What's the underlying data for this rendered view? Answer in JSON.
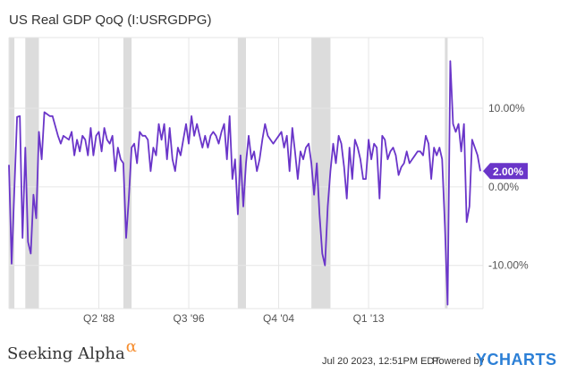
{
  "header": {
    "title": "US Real GDP QoQ (I:USRGDPG)"
  },
  "footer": {
    "date": "Jul 20 2023, 12:51PM EDT.",
    "powered_by": "Powered by",
    "ycharts_logo": "YCHARTS",
    "seeking_alpha_logo": "Seeking Alpha",
    "seeking_alpha_symbol": "α"
  },
  "colors": {
    "line": "#6a35c9",
    "badge": "#6a35c9",
    "recession_band": "#dcdcdc",
    "grid": "#e6e6e6"
  },
  "chart_data": {
    "type": "line",
    "title": "US Real GDP QoQ (I:USRGDPG)",
    "xlabel": "",
    "ylabel": "",
    "x_ticks": [
      "Q2 '88",
      "Q3 '96",
      "Q4 '04",
      "Q1 '13"
    ],
    "y_ticks": [
      "10.00%",
      "0.00%",
      "-10.00%"
    ],
    "ylim": [
      -15.5,
      19
    ],
    "xlim": [
      1980.0,
      2023.5
    ],
    "grid": true,
    "last_value_label": "2.00%",
    "recessions": [
      [
        1980.0,
        1980.5
      ],
      [
        1981.5,
        1982.75
      ],
      [
        1990.5,
        1991.25
      ],
      [
        2001.0,
        2001.75
      ],
      [
        2007.75,
        2009.5
      ],
      [
        2020.0,
        2020.25
      ]
    ],
    "series": [
      {
        "values": [
          [
            1980.0,
            2.8
          ],
          [
            1980.25,
            -9.8
          ],
          [
            1980.5,
            -0.2
          ],
          [
            1980.75,
            8.9
          ],
          [
            1981.0,
            9.0
          ],
          [
            1981.25,
            -6.5
          ],
          [
            1981.5,
            5.0
          ],
          [
            1981.75,
            -7.0
          ],
          [
            1982.0,
            -8.5
          ],
          [
            1982.25,
            -1.0
          ],
          [
            1982.5,
            -4.0
          ],
          [
            1982.75,
            7.0
          ],
          [
            1983.0,
            3.5
          ],
          [
            1983.25,
            9.5
          ],
          [
            1983.75,
            9.0
          ],
          [
            1984.0,
            9.0
          ],
          [
            1984.5,
            6.5
          ],
          [
            1984.75,
            5.5
          ],
          [
            1985.0,
            6.5
          ],
          [
            1985.5,
            6.0
          ],
          [
            1985.75,
            7.0
          ],
          [
            1986.0,
            4.0
          ],
          [
            1986.25,
            6.0
          ],
          [
            1986.5,
            4.5
          ],
          [
            1986.75,
            6.5
          ],
          [
            1987.0,
            6.0
          ],
          [
            1987.25,
            4.0
          ],
          [
            1987.5,
            7.5
          ],
          [
            1987.75,
            4.0
          ],
          [
            1988.0,
            6.5
          ],
          [
            1988.25,
            7.0
          ],
          [
            1988.5,
            4.5
          ],
          [
            1988.75,
            7.5
          ],
          [
            1989.0,
            6.0
          ],
          [
            1989.25,
            5.5
          ],
          [
            1989.5,
            6.5
          ],
          [
            1989.75,
            2.0
          ],
          [
            1990.0,
            5.0
          ],
          [
            1990.25,
            3.5
          ],
          [
            1990.5,
            3.0
          ],
          [
            1990.75,
            -6.5
          ],
          [
            1991.0,
            -1.5
          ],
          [
            1991.25,
            5.0
          ],
          [
            1991.5,
            5.5
          ],
          [
            1991.75,
            3.0
          ],
          [
            1992.0,
            7.0
          ],
          [
            1992.25,
            6.5
          ],
          [
            1992.5,
            6.5
          ],
          [
            1992.75,
            6.0
          ],
          [
            1993.0,
            2.0
          ],
          [
            1993.25,
            5.0
          ],
          [
            1993.5,
            4.0
          ],
          [
            1993.75,
            8.0
          ],
          [
            1994.0,
            6.0
          ],
          [
            1994.25,
            8.0
          ],
          [
            1994.5,
            3.5
          ],
          [
            1994.75,
            7.5
          ],
          [
            1995.0,
            3.5
          ],
          [
            1995.25,
            2.0
          ],
          [
            1995.5,
            5.0
          ],
          [
            1995.75,
            4.0
          ],
          [
            1996.0,
            6.0
          ],
          [
            1996.25,
            8.0
          ],
          [
            1996.5,
            5.5
          ],
          [
            1996.75,
            9.0
          ],
          [
            1997.0,
            6.5
          ],
          [
            1997.25,
            8.0
          ],
          [
            1997.5,
            6.5
          ],
          [
            1997.75,
            5.0
          ],
          [
            1998.0,
            6.5
          ],
          [
            1998.25,
            5.0
          ],
          [
            1998.5,
            6.5
          ],
          [
            1998.75,
            7.0
          ],
          [
            1999.0,
            6.5
          ],
          [
            1999.25,
            5.5
          ],
          [
            1999.5,
            7.0
          ],
          [
            1999.75,
            8.0
          ],
          [
            2000.0,
            3.5
          ],
          [
            2000.25,
            9.0
          ],
          [
            2000.5,
            1.0
          ],
          [
            2000.75,
            3.5
          ],
          [
            2001.0,
            -3.5
          ],
          [
            2001.25,
            4.0
          ],
          [
            2001.5,
            -2.5
          ],
          [
            2001.75,
            3.0
          ],
          [
            2002.0,
            6.5
          ],
          [
            2002.25,
            3.5
          ],
          [
            2002.5,
            4.5
          ],
          [
            2002.75,
            2.0
          ],
          [
            2003.0,
            3.5
          ],
          [
            2003.25,
            6.0
          ],
          [
            2003.5,
            8.0
          ],
          [
            2003.75,
            6.5
          ],
          [
            2004.0,
            6.0
          ],
          [
            2004.25,
            5.5
          ],
          [
            2004.5,
            6.0
          ],
          [
            2004.75,
            6.5
          ],
          [
            2005.0,
            7.0
          ],
          [
            2005.25,
            5.0
          ],
          [
            2005.5,
            6.5
          ],
          [
            2005.75,
            2.0
          ],
          [
            2006.0,
            7.5
          ],
          [
            2006.25,
            4.5
          ],
          [
            2006.5,
            1.0
          ],
          [
            2006.75,
            4.5
          ],
          [
            2007.0,
            3.5
          ],
          [
            2007.25,
            5.0
          ],
          [
            2007.5,
            5.5
          ],
          [
            2007.75,
            3.0
          ],
          [
            2008.0,
            -1.0
          ],
          [
            2008.25,
            3.0
          ],
          [
            2008.5,
            -3.5
          ],
          [
            2008.75,
            -8.5
          ],
          [
            2009.0,
            -10.0
          ],
          [
            2009.25,
            -2.5
          ],
          [
            2009.5,
            2.0
          ],
          [
            2009.75,
            5.5
          ],
          [
            2010.0,
            3.0
          ],
          [
            2010.25,
            6.5
          ],
          [
            2010.5,
            5.5
          ],
          [
            2010.75,
            2.5
          ],
          [
            2011.0,
            -1.5
          ],
          [
            2011.25,
            5.0
          ],
          [
            2011.5,
            1.0
          ],
          [
            2011.75,
            6.0
          ],
          [
            2012.0,
            5.0
          ],
          [
            2012.25,
            3.5
          ],
          [
            2012.5,
            1.0
          ],
          [
            2012.75,
            1.0
          ],
          [
            2013.0,
            6.0
          ],
          [
            2013.25,
            3.5
          ],
          [
            2013.5,
            5.5
          ],
          [
            2013.75,
            5.0
          ],
          [
            2014.0,
            -1.5
          ],
          [
            2014.25,
            6.5
          ],
          [
            2014.5,
            6.0
          ],
          [
            2014.75,
            3.5
          ],
          [
            2015.0,
            4.5
          ],
          [
            2015.25,
            5.0
          ],
          [
            2015.5,
            4.0
          ],
          [
            2015.75,
            1.5
          ],
          [
            2016.0,
            2.5
          ],
          [
            2016.25,
            3.0
          ],
          [
            2016.5,
            4.5
          ],
          [
            2016.75,
            3.0
          ],
          [
            2017.0,
            3.5
          ],
          [
            2017.25,
            4.0
          ],
          [
            2017.5,
            4.5
          ],
          [
            2017.75,
            4.5
          ],
          [
            2018.0,
            4.0
          ],
          [
            2018.25,
            6.5
          ],
          [
            2018.5,
            5.5
          ],
          [
            2018.75,
            1.0
          ],
          [
            2019.0,
            5.0
          ],
          [
            2019.25,
            4.0
          ],
          [
            2019.5,
            5.0
          ],
          [
            2019.75,
            3.5
          ],
          [
            2020.0,
            -5.0
          ],
          [
            2020.25,
            -15.0
          ],
          [
            2020.5,
            16.0
          ],
          [
            2020.75,
            8.0
          ],
          [
            2021.0,
            7.0
          ],
          [
            2021.25,
            8.0
          ],
          [
            2021.5,
            4.5
          ],
          [
            2021.75,
            8.0
          ],
          [
            2022.0,
            -4.5
          ],
          [
            2022.25,
            -2.5
          ],
          [
            2022.5,
            6.0
          ],
          [
            2022.75,
            5.0
          ],
          [
            2023.0,
            4.0
          ],
          [
            2023.25,
            2.0
          ]
        ]
      }
    ]
  }
}
